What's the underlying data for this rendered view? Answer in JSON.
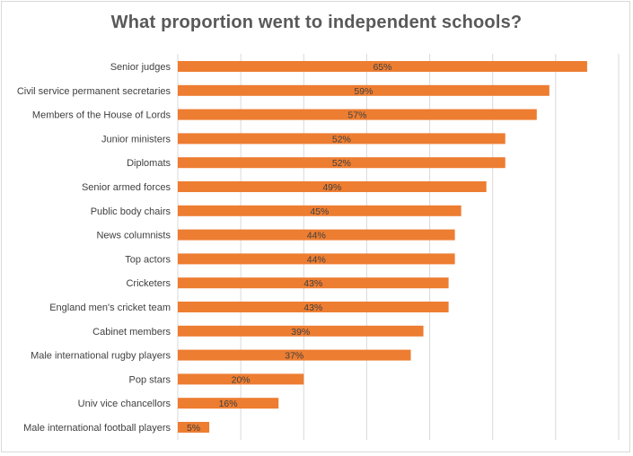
{
  "chart_data": {
    "type": "bar",
    "orientation": "horizontal",
    "title": "What proportion went to independent schools?",
    "xlabel": "",
    "ylabel": "",
    "xlim": [
      0,
      70
    ],
    "gridlines": true,
    "legend": "none",
    "bar_color": "#ED7D31",
    "categories": [
      "Senior judges",
      "Civil service permanent secretaries",
      "Members of the House of Lords",
      "Junior ministers",
      "Diplomats",
      "Senior armed forces",
      "Public body chairs",
      "News columnists",
      "Top actors",
      "Cricketers",
      "England men's cricket team",
      "Cabinet members",
      "Male international rugby players",
      "Pop stars",
      "Univ vice chancellors",
      "Male international football players"
    ],
    "values": [
      65,
      59,
      57,
      52,
      52,
      49,
      45,
      44,
      44,
      43,
      43,
      39,
      37,
      20,
      16,
      5
    ],
    "data_labels": [
      "65%",
      "59%",
      "57%",
      "52%",
      "52%",
      "49%",
      "45%",
      "44%",
      "44%",
      "43%",
      "43%",
      "39%",
      "37%",
      "20%",
      "16%",
      "5%"
    ]
  }
}
